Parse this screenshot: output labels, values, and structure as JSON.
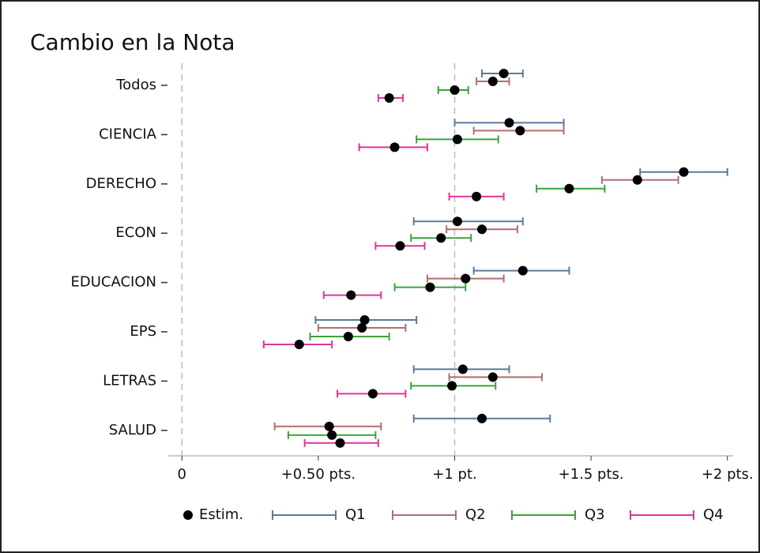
{
  "chart_data": {
    "type": "dot-whisker",
    "title": "Cambio en la Nota",
    "categories": [
      "Todos",
      "CIENCIA",
      "DERECHO",
      "ECON",
      "EDUCACION",
      "EPS",
      "LETRAS",
      "SALUD"
    ],
    "estimate_label": "Estim.",
    "series": [
      {
        "name": "Q1",
        "color": "#5b7a99",
        "values": [
          1.18,
          1.2,
          1.84,
          1.01,
          1.25,
          0.67,
          1.03,
          1.1
        ],
        "lower": [
          1.1,
          1.0,
          1.68,
          0.85,
          1.07,
          0.49,
          0.85,
          0.85
        ],
        "upper": [
          1.25,
          1.4,
          2.0,
          1.25,
          1.42,
          0.86,
          1.2,
          1.35
        ]
      },
      {
        "name": "Q2",
        "color": "#b06e6e",
        "values": [
          1.14,
          1.24,
          1.67,
          1.1,
          1.04,
          0.66,
          1.14,
          0.54
        ],
        "lower": [
          1.08,
          1.07,
          1.54,
          0.97,
          0.9,
          0.5,
          0.98,
          0.34
        ],
        "upper": [
          1.2,
          1.4,
          1.82,
          1.23,
          1.18,
          0.82,
          1.32,
          0.73
        ]
      },
      {
        "name": "Q3",
        "color": "#3aa33a",
        "values": [
          1.0,
          1.01,
          1.42,
          0.95,
          0.91,
          0.61,
          0.99,
          0.55
        ],
        "lower": [
          0.94,
          0.86,
          1.3,
          0.84,
          0.78,
          0.47,
          0.84,
          0.39
        ],
        "upper": [
          1.05,
          1.16,
          1.55,
          1.06,
          1.04,
          0.76,
          1.15,
          0.71
        ]
      },
      {
        "name": "Q4",
        "color": "#e0359a",
        "values": [
          0.76,
          0.78,
          1.08,
          0.8,
          0.62,
          0.43,
          0.7,
          0.58
        ],
        "lower": [
          0.72,
          0.65,
          0.98,
          0.71,
          0.52,
          0.3,
          0.57,
          0.45
        ],
        "upper": [
          0.81,
          0.9,
          1.18,
          0.89,
          0.73,
          0.55,
          0.82,
          0.72
        ]
      }
    ],
    "xlim": [
      -0.05,
      2.05
    ],
    "xticks": [
      0,
      {
        "value": 0.5,
        "label": "+0.50 pts."
      },
      {
        "value": 1,
        "label": "+1 pt."
      },
      {
        "value": 1.5,
        "label": "+1.5 pts."
      },
      {
        "value": 2,
        "label": "+2 pts."
      }
    ],
    "reference_lines": [
      0,
      1
    ]
  }
}
